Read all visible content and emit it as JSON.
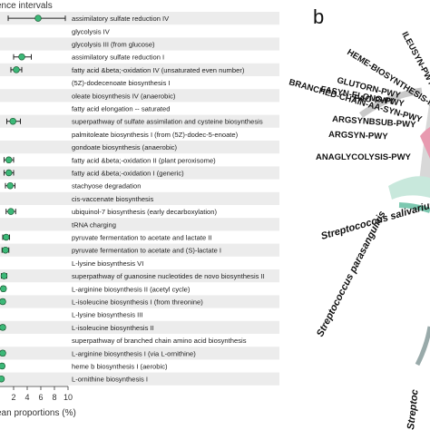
{
  "panel_a": {
    "header": "ence intervals",
    "axis_label": "ean proportions (%)"
  },
  "panel_b": {
    "letter": "b",
    "pathways": [
      "HEME-BIOSYNTHESIS-II",
      "ILEUSYN-PWY",
      "GLUTORN-PWY",
      "FASYN-ELONG-PWY",
      "FAO-PWY",
      "BRANCHED-CHAIN-AA-SYN-PWY",
      "ARGSYNBSUB-PWY",
      "ARGSYN-PWY",
      "ANAGLYCOLYSIS-PWY"
    ],
    "species": [
      "Streptococcus salivarius",
      "Streptococcus parasanguinis",
      "Streptoc"
    ]
  },
  "chart_data": {
    "type": "scatter",
    "title": "",
    "xlabel": "ean proportions (%)",
    "ylabel": "",
    "xlim": [
      0,
      10
    ],
    "xticks": [
      2,
      4,
      6,
      8,
      10
    ],
    "grid": "horizontal row bands",
    "marker_color": "#3cb878",
    "categories": [
      "assimilatory sulfate reduction IV",
      "glycolysis IV",
      "glycolysis III (from glucose)",
      "assimilatory sulfate reduction I",
      "fatty acid &beta;-oxidation IV (unsaturated even number)",
      "(5Z)-dodecenoate biosynthesis I",
      "oleate biosynthesis IV (anaerobic)",
      "fatty acid elongation -- saturated",
      "superpathway of sulfate assimilation and cysteine biosynthesis",
      "palmitoleate biosynthesis I (from (5Z)-dodec-5-enoate)",
      "gondoate biosynthesis (anaerobic)",
      "fatty acid &beta;-oxidation II (plant peroxisome)",
      "fatty acid &beta;-oxidation I (generic)",
      "stachyose degradation",
      "cis-vaccenate biosynthesis",
      "ubiquinol-7 biosynthesis (early decarboxylation)",
      "tRNA charging",
      "pyruvate fermentation to acetate and lactate II",
      "pyruvate fermentation to acetate and (S)-lactate I",
      "L-lysine biosynthesis VI",
      "superpathway of guanosine nucleotides de novo biosynthesis II",
      "L-arginine biosynthesis II (acetyl cycle)",
      "L-isoleucine biosynthesis I (from threonine)",
      "L-lysine biosynthesis III",
      "L-isoleucine biosynthesis II",
      "superpathway of branched chain amino acid biosynthesis",
      "L-arginine biosynthesis I (via L-ornithine)",
      "heme b biosynthesis I (aerobic)",
      "L-ornithine biosynthesis I"
    ],
    "values": [
      5.6,
      null,
      null,
      3.2,
      2.4,
      null,
      null,
      null,
      1.9,
      null,
      null,
      1.3,
      1.3,
      1.5,
      null,
      1.6,
      null,
      0.9,
      0.8,
      null,
      0.6,
      0.5,
      0.4,
      null,
      0.4,
      null,
      0.4,
      0.3,
      0.2
    ],
    "ci_low": [
      1.2,
      null,
      null,
      2.0,
      1.6,
      null,
      null,
      null,
      1.0,
      null,
      null,
      0.6,
      0.6,
      0.8,
      null,
      0.9,
      null,
      0.4,
      0.3,
      null,
      0.2,
      0.2,
      0.1,
      null,
      0.1,
      null,
      0.1,
      0.0,
      0.0
    ],
    "ci_high": [
      9.6,
      null,
      null,
      4.6,
      3.2,
      null,
      null,
      null,
      3.0,
      null,
      null,
      2.0,
      2.0,
      2.2,
      null,
      2.3,
      null,
      1.4,
      1.3,
      null,
      1.0,
      0.8,
      0.7,
      null,
      0.7,
      null,
      0.7,
      0.6,
      0.4
    ]
  }
}
